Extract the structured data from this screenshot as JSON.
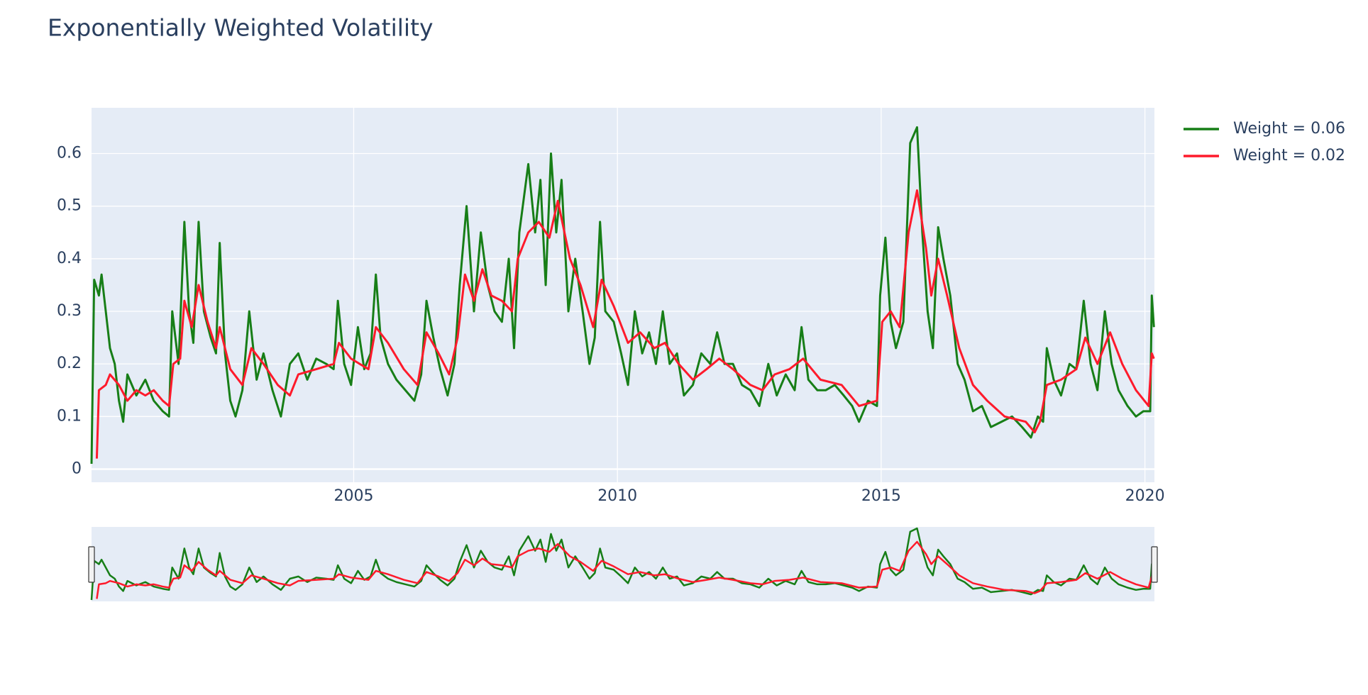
{
  "chart_data": {
    "type": "line",
    "title": "Exponentially Weighted Volatility",
    "xlim": [
      2000.03,
      2020.18
    ],
    "xticks": [
      2005,
      2010,
      2015,
      2020
    ],
    "ylim": [
      -0.025,
      0.687
    ],
    "yticks": [
      0,
      0.1,
      0.2,
      0.3,
      0.4,
      0.5,
      0.6
    ],
    "grid": true,
    "legend": "top-right",
    "range_slider": true,
    "series": [
      {
        "name": "Weight = 0.06",
        "color": "#177e17",
        "x": [
          2000.03,
          2000.08,
          2000.17,
          2000.22,
          2000.3,
          2000.38,
          2000.47,
          2000.55,
          2000.63,
          2000.71,
          2000.88,
          2001.05,
          2001.21,
          2001.38,
          2001.5,
          2001.56,
          2001.68,
          2001.79,
          2001.88,
          2001.96,
          2002.06,
          2002.16,
          2002.29,
          2002.39,
          2002.46,
          2002.56,
          2002.66,
          2002.76,
          2002.89,
          2003.02,
          2003.16,
          2003.29,
          2003.46,
          2003.62,
          2003.79,
          2003.95,
          2004.12,
          2004.29,
          2004.48,
          2004.62,
          2004.7,
          2004.82,
          2004.95,
          2005.08,
          2005.2,
          2005.32,
          2005.42,
          2005.51,
          2005.65,
          2005.81,
          2005.98,
          2006.15,
          2006.28,
          2006.38,
          2006.51,
          2006.64,
          2006.78,
          2006.91,
          2007.01,
          2007.14,
          2007.28,
          2007.41,
          2007.54,
          2007.67,
          2007.81,
          2007.94,
          2008.04,
          2008.14,
          2008.31,
          2008.44,
          2008.54,
          2008.64,
          2008.74,
          2008.84,
          2008.94,
          2009.07,
          2009.2,
          2009.34,
          2009.47,
          2009.57,
          2009.67,
          2009.77,
          2009.93,
          2010.07,
          2010.2,
          2010.33,
          2010.47,
          2010.6,
          2010.73,
          2010.86,
          2010.99,
          2011.13,
          2011.26,
          2011.43,
          2011.59,
          2011.76,
          2011.89,
          2012.03,
          2012.19,
          2012.36,
          2012.52,
          2012.69,
          2012.86,
          2013.02,
          2013.19,
          2013.36,
          2013.49,
          2013.62,
          2013.79,
          2013.95,
          2014.12,
          2014.29,
          2014.45,
          2014.58,
          2014.75,
          2014.92,
          2014.98,
          2015.08,
          2015.18,
          2015.28,
          2015.42,
          2015.55,
          2015.68,
          2015.78,
          2015.88,
          2015.98,
          2016.08,
          2016.18,
          2016.31,
          2016.45,
          2016.58,
          2016.74,
          2016.91,
          2017.08,
          2017.28,
          2017.48,
          2017.67,
          2017.84,
          2017.97,
          2018.07,
          2018.14,
          2018.27,
          2018.41,
          2018.57,
          2018.7,
          2018.84,
          2018.97,
          2019.1,
          2019.24,
          2019.37,
          2019.5,
          2019.67,
          2019.83,
          2019.97,
          2020.1,
          2020.13,
          2020.17
        ],
        "values": [
          0.01,
          0.36,
          0.33,
          0.37,
          0.3,
          0.23,
          0.2,
          0.13,
          0.09,
          0.18,
          0.14,
          0.17,
          0.13,
          0.11,
          0.1,
          0.3,
          0.2,
          0.47,
          0.3,
          0.24,
          0.47,
          0.3,
          0.25,
          0.22,
          0.43,
          0.22,
          0.13,
          0.1,
          0.15,
          0.3,
          0.17,
          0.22,
          0.15,
          0.1,
          0.2,
          0.22,
          0.17,
          0.21,
          0.2,
          0.19,
          0.32,
          0.2,
          0.16,
          0.27,
          0.19,
          0.22,
          0.37,
          0.25,
          0.2,
          0.17,
          0.15,
          0.13,
          0.18,
          0.32,
          0.25,
          0.19,
          0.14,
          0.2,
          0.35,
          0.5,
          0.3,
          0.45,
          0.35,
          0.3,
          0.28,
          0.4,
          0.23,
          0.45,
          0.58,
          0.45,
          0.55,
          0.35,
          0.6,
          0.45,
          0.55,
          0.3,
          0.4,
          0.3,
          0.2,
          0.25,
          0.47,
          0.3,
          0.28,
          0.22,
          0.16,
          0.3,
          0.22,
          0.26,
          0.2,
          0.3,
          0.2,
          0.22,
          0.14,
          0.16,
          0.22,
          0.2,
          0.26,
          0.2,
          0.2,
          0.16,
          0.15,
          0.12,
          0.2,
          0.14,
          0.18,
          0.15,
          0.27,
          0.17,
          0.15,
          0.15,
          0.16,
          0.14,
          0.12,
          0.09,
          0.13,
          0.12,
          0.33,
          0.44,
          0.28,
          0.23,
          0.28,
          0.62,
          0.65,
          0.45,
          0.3,
          0.23,
          0.46,
          0.4,
          0.33,
          0.2,
          0.17,
          0.11,
          0.12,
          0.08,
          0.09,
          0.1,
          0.08,
          0.06,
          0.1,
          0.09,
          0.23,
          0.17,
          0.14,
          0.2,
          0.19,
          0.32,
          0.2,
          0.15,
          0.3,
          0.2,
          0.15,
          0.12,
          0.1,
          0.11,
          0.11,
          0.33,
          0.27
        ]
      },
      {
        "name": "Weight = 0.02",
        "color": "#fe1a2b",
        "x": [
          2000.13,
          2000.17,
          2000.3,
          2000.38,
          2000.55,
          2000.71,
          2000.88,
          2001.05,
          2001.21,
          2001.38,
          2001.5,
          2001.58,
          2001.71,
          2001.79,
          2001.93,
          2002.06,
          2002.23,
          2002.39,
          2002.46,
          2002.66,
          2002.89,
          2003.06,
          2003.29,
          2003.56,
          2003.79,
          2003.95,
          2004.29,
          2004.62,
          2004.72,
          2004.95,
          2005.28,
          2005.42,
          2005.65,
          2005.95,
          2006.21,
          2006.38,
          2006.61,
          2006.81,
          2006.97,
          2007.11,
          2007.28,
          2007.44,
          2007.61,
          2007.81,
          2008.0,
          2008.11,
          2008.31,
          2008.51,
          2008.71,
          2008.87,
          2009.1,
          2009.3,
          2009.54,
          2009.7,
          2009.93,
          2010.2,
          2010.43,
          2010.7,
          2010.9,
          2011.16,
          2011.43,
          2011.69,
          2011.93,
          2012.19,
          2012.52,
          2012.75,
          2012.98,
          2013.26,
          2013.52,
          2013.85,
          2014.25,
          2014.58,
          2014.92,
          2015.02,
          2015.18,
          2015.35,
          2015.52,
          2015.68,
          2015.85,
          2015.95,
          2016.08,
          2016.25,
          2016.48,
          2016.74,
          2017.01,
          2017.34,
          2017.74,
          2017.91,
          2018.01,
          2018.14,
          2018.41,
          2018.7,
          2018.87,
          2019.1,
          2019.34,
          2019.57,
          2019.83,
          2020.07,
          2020.13,
          2020.17
        ],
        "values": [
          0.02,
          0.15,
          0.16,
          0.18,
          0.16,
          0.13,
          0.15,
          0.14,
          0.15,
          0.13,
          0.12,
          0.2,
          0.21,
          0.32,
          0.27,
          0.35,
          0.28,
          0.23,
          0.27,
          0.19,
          0.16,
          0.23,
          0.2,
          0.16,
          0.14,
          0.18,
          0.19,
          0.2,
          0.24,
          0.21,
          0.19,
          0.27,
          0.24,
          0.19,
          0.16,
          0.26,
          0.22,
          0.18,
          0.25,
          0.37,
          0.32,
          0.38,
          0.33,
          0.32,
          0.3,
          0.4,
          0.45,
          0.47,
          0.44,
          0.51,
          0.4,
          0.35,
          0.27,
          0.36,
          0.31,
          0.24,
          0.26,
          0.23,
          0.24,
          0.2,
          0.17,
          0.19,
          0.21,
          0.19,
          0.16,
          0.15,
          0.18,
          0.19,
          0.21,
          0.17,
          0.16,
          0.12,
          0.13,
          0.28,
          0.3,
          0.27,
          0.45,
          0.53,
          0.42,
          0.33,
          0.4,
          0.33,
          0.23,
          0.16,
          0.13,
          0.1,
          0.09,
          0.07,
          0.09,
          0.16,
          0.17,
          0.19,
          0.25,
          0.2,
          0.26,
          0.2,
          0.15,
          0.12,
          0.22,
          0.21
        ]
      }
    ]
  }
}
